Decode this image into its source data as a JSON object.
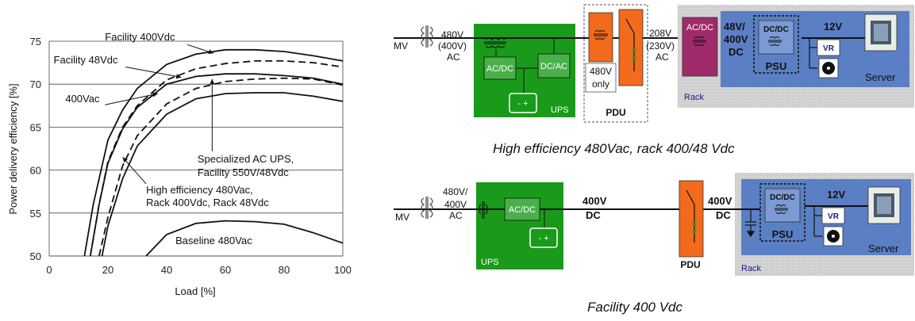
{
  "chart_data": {
    "type": "line",
    "title": "",
    "xlabel": "Load [%]",
    "ylabel": "Power delivery efficiency [%]",
    "xlim": [
      0,
      100
    ],
    "ylim": [
      50,
      75
    ],
    "xticks": [
      0,
      20,
      40,
      60,
      80,
      100
    ],
    "yticks": [
      50,
      55,
      60,
      65,
      70,
      75
    ],
    "grid": "horizontal",
    "series": [
      {
        "name": "Facility 400Vdc",
        "style": "solid",
        "x": [
          12,
          15,
          20,
          25,
          30,
          40,
          50,
          60,
          70,
          80,
          90,
          100
        ],
        "y": [
          50,
          56,
          63.5,
          67,
          69.5,
          72.3,
          73.5,
          74,
          74,
          73.8,
          73.3,
          72.7
        ]
      },
      {
        "name": "Facility 48Vdc",
        "style": "dashed",
        "x": [
          14,
          17,
          20,
          25,
          30,
          40,
          50,
          60,
          70,
          80,
          90,
          100
        ],
        "y": [
          50,
          56,
          61,
          65,
          67.5,
          70.5,
          71.8,
          72.4,
          72.7,
          72.7,
          72.5,
          72
        ]
      },
      {
        "name": "400Vac",
        "style": "solid",
        "x": [
          14,
          17,
          20,
          25,
          30,
          40,
          50,
          60,
          70,
          80,
          90,
          100
        ],
        "y": [
          50,
          56,
          60.8,
          64.8,
          67.3,
          70,
          70.9,
          71.2,
          71.2,
          71,
          70.7,
          70
        ]
      },
      {
        "name": "Specialized AC UPS, Facility 550V/48Vdc",
        "style": "dashed",
        "x": [
          17,
          20,
          25,
          30,
          40,
          50,
          60,
          70,
          80,
          90,
          100
        ],
        "y": [
          50,
          54.5,
          60.5,
          64,
          67.7,
          69.5,
          70.3,
          70.6,
          70.7,
          70.6,
          69.9
        ]
      },
      {
        "name": "High efficiency 480Vac, Rack 400Vdc, Rack 48Vdc",
        "style": "solid",
        "x": [
          18,
          20,
          25,
          30,
          40,
          50,
          60,
          70,
          80,
          90,
          100
        ],
        "y": [
          50,
          53.5,
          59,
          62.8,
          66.5,
          68.3,
          68.9,
          69,
          69,
          68.6,
          68
        ]
      },
      {
        "name": "Baseline 480Vac",
        "style": "solid",
        "x": [
          33,
          40,
          50,
          60,
          70,
          80,
          90,
          100
        ],
        "y": [
          50,
          52.5,
          53.8,
          54.1,
          54,
          53.7,
          52.7,
          51.5
        ]
      }
    ],
    "annotations": [
      {
        "text": "Facility 400Vdc",
        "x": 19,
        "y": 75.1
      },
      {
        "text": "Facility 48Vdc",
        "x": 1.5,
        "y": 72.4
      },
      {
        "text": "400Vac",
        "x": 5.5,
        "y": 67.9
      },
      {
        "text": "Specialized AC UPS,",
        "x": 50.5,
        "y": 60.9
      },
      {
        "text": "Facility 550V/48Vdc",
        "x": 50.5,
        "y": 59.3
      },
      {
        "text": "High efficiency 480Vac,",
        "x": 33,
        "y": 57.3
      },
      {
        "text": "Rack 400Vdc, Rack 48Vdc",
        "x": 33,
        "y": 55.8
      },
      {
        "text": "Baseline 480Vac",
        "x": 43,
        "y": 51.4
      }
    ]
  },
  "diagram1": {
    "caption": "High efficiency 480Vac, rack 400/48 Vdc",
    "mv": "MV",
    "input_voltage": [
      "480V",
      "(400V)",
      "AC"
    ],
    "ups_label": "UPS",
    "acdc": "AC/DC",
    "dcac": "DC/AC",
    "pdu_only": [
      "480V",
      "only"
    ],
    "pdu_label": "PDU",
    "rack_voltage": [
      "208V",
      "(230V)",
      "AC"
    ],
    "rack_acdc": "AC/DC",
    "dc_voltage": [
      "48V/",
      "400V",
      "DC"
    ],
    "dcdc": "DC/DC",
    "psu": "PSU",
    "v12": "12V",
    "vr": "VR",
    "server": "Server",
    "rack": "Rack"
  },
  "diagram2": {
    "caption": "Facility 400 Vdc",
    "mv": "MV",
    "input_voltage": [
      "480V/",
      "400V",
      "AC"
    ],
    "ups_label": "UPS",
    "acdc": "AC/DC",
    "dc_voltage1": [
      "400V",
      "DC"
    ],
    "pdu_label": "PDU",
    "dc_voltage2": [
      "400V",
      "DC"
    ],
    "dcdc": "DC/DC",
    "psu": "PSU",
    "v12": "12V",
    "vr": "VR",
    "server": "Server",
    "rack": "Rack"
  },
  "colors": {
    "ups_green": "#1a9a1a",
    "pdu_orange": "#f26a1b",
    "rack_grey": "#cfcfcf",
    "server_blue": "#5b7fc4",
    "rack_acdc_purple": "#a02a6a"
  }
}
